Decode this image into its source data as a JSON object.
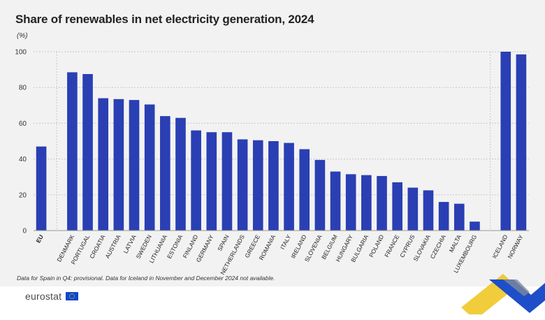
{
  "title": "Share of renewables in net electricity generation, 2024",
  "unit": "(%)",
  "footnote": "Data for Spain in Q4: provisional. Data for Iceland in November and December 2024 not available.",
  "logo_text": "eurostat",
  "colors": {
    "bar": "#2a3fb3",
    "grid": "#c8c8c8",
    "panel": "#f2f2f2",
    "accent_yellow": "#f0c419",
    "accent_blue": "#1f4ec9"
  },
  "chart_data": {
    "type": "bar",
    "title": "Share of renewables in net electricity generation, 2024",
    "ylabel": "(%)",
    "ylim": [
      0,
      100
    ],
    "yticks": [
      0,
      20,
      40,
      60,
      80,
      100
    ],
    "grid": true,
    "categories": [
      "EU",
      "DENMARK",
      "PORTUGAL",
      "CROATIA",
      "AUSTRIA",
      "LATVIA",
      "SWEDEN",
      "LITHUANIA",
      "ESTONIA",
      "FINLAND",
      "GERMANY",
      "SPAIN",
      "NETHERLANDS",
      "GREECE",
      "ROMANIA",
      "ITALY",
      "IRELAND",
      "SLOVENIA",
      "BELGIUM",
      "HUNGARY",
      "BULGARIA",
      "POLAND",
      "FRANCE",
      "CYPRUS",
      "SLOVAKIA",
      "CZECHIA",
      "MALTA",
      "LUXEMBOURG",
      "ICELAND",
      "NORWAY"
    ],
    "groups": [
      1,
      27,
      2
    ],
    "bold_categories": [
      "EU"
    ],
    "values": [
      47.0,
      88.5,
      87.5,
      74.0,
      73.5,
      73.0,
      70.5,
      64.0,
      63.0,
      56.0,
      55.0,
      55.0,
      51.0,
      50.5,
      50.0,
      49.0,
      45.5,
      39.5,
      33.0,
      31.5,
      31.0,
      30.5,
      27.0,
      24.0,
      22.5,
      16.0,
      15.0,
      5.0,
      100.0,
      98.5
    ]
  }
}
